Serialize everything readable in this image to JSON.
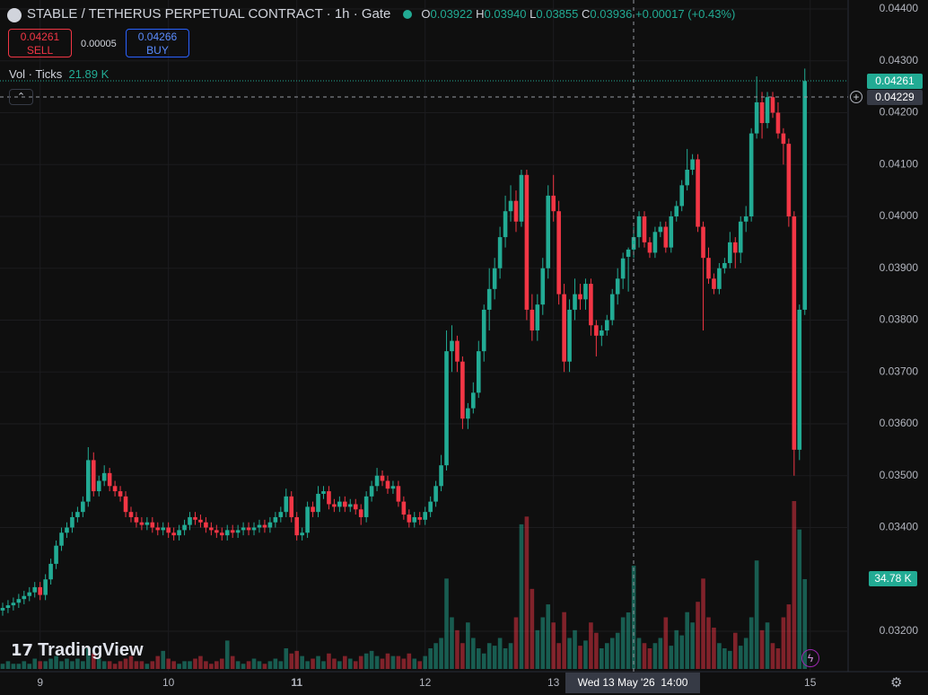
{
  "chart_data": {
    "type": "candlestick",
    "up_color": "#22ab94",
    "down_color": "#f23645",
    "grid": true,
    "xlim": [
      -0.5,
      158.1
    ],
    "ylim": [
      0.031186,
      0.044173
    ],
    "volume_ylim": [
      0,
      259
    ],
    "xticks": [
      {
        "value": 7,
        "label": "9"
      },
      {
        "value": 31,
        "label": "10"
      },
      {
        "value": 55,
        "label": "11"
      },
      {
        "value": 79,
        "label": "12"
      },
      {
        "value": 103,
        "label": "13"
      },
      {
        "value": 151,
        "label": "15"
      }
    ],
    "yticks": [
      {
        "value": 0.032,
        "label": "0.03200"
      },
      {
        "value": 0.034,
        "label": "0.03400"
      },
      {
        "value": 0.035,
        "label": "0.03500"
      },
      {
        "value": 0.036,
        "label": "0.03600"
      },
      {
        "value": 0.037,
        "label": "0.03700"
      },
      {
        "value": 0.038,
        "label": "0.03800"
      },
      {
        "value": 0.039,
        "label": "0.03900"
      },
      {
        "value": 0.04,
        "label": "0.04000"
      },
      {
        "value": 0.041,
        "label": "0.04100"
      },
      {
        "value": 0.042,
        "label": "0.04200"
      },
      {
        "value": 0.043,
        "label": "0.04300"
      },
      {
        "value": 0.044,
        "label": "0.04400"
      }
    ],
    "open": [
      0.0324,
      0.03245,
      0.0325,
      0.03255,
      0.03262,
      0.03268,
      0.03275,
      0.03285,
      0.0327,
      0.033,
      0.0333,
      0.03365,
      0.0339,
      0.034,
      0.0342,
      0.0343,
      0.0345,
      0.0353,
      0.0347,
      0.0349,
      0.03505,
      0.0348,
      0.0347,
      0.0346,
      0.0343,
      0.0342,
      0.0341,
      0.03405,
      0.0341,
      0.034,
      0.03395,
      0.034,
      0.0339,
      0.03385,
      0.03395,
      0.03405,
      0.0342,
      0.03415,
      0.0341,
      0.034,
      0.03395,
      0.0339,
      0.03385,
      0.03395,
      0.0339,
      0.03395,
      0.034,
      0.03395,
      0.034,
      0.03405,
      0.034,
      0.0341,
      0.0342,
      0.0343,
      0.0346,
      0.0342,
      0.03385,
      0.0339,
      0.0344,
      0.0343,
      0.03465,
      0.0347,
      0.03445,
      0.0344,
      0.0345,
      0.0344,
      0.03445,
      0.03435,
      0.0342,
      0.0346,
      0.0348,
      0.035,
      0.0349,
      0.03475,
      0.0348,
      0.0345,
      0.03425,
      0.0341,
      0.0342,
      0.03415,
      0.0343,
      0.0345,
      0.0348,
      0.0352,
      0.0374,
      0.0376,
      0.0372,
      0.0361,
      0.0363,
      0.0366,
      0.0374,
      0.0382,
      0.0386,
      0.039,
      0.0396,
      0.0401,
      0.0403,
      0.0399,
      0.0408,
      0.0382,
      0.0378,
      0.0383,
      0.039,
      0.0404,
      0.0401,
      0.0385,
      0.0372,
      0.0382,
      0.0385,
      0.0384,
      0.0387,
      0.0379,
      0.0377,
      0.0378,
      0.038,
      0.0385,
      0.0388,
      0.03922,
      0.03936,
      0.0396,
      0.04,
      0.0395,
      0.0393,
      0.0397,
      0.0398,
      0.0394,
      0.04,
      0.0402,
      0.0406,
      0.0409,
      0.0411,
      0.0398,
      0.0392,
      0.0388,
      0.0386,
      0.039,
      0.0391,
      0.0395,
      0.0393,
      0.0399,
      0.04,
      0.0416,
      0.0422,
      0.0418,
      0.0423,
      0.042,
      0.0416,
      0.0414,
      0.04,
      0.0355,
      0.0382
    ],
    "high": [
      0.03255,
      0.0326,
      0.03265,
      0.03272,
      0.03278,
      0.03285,
      0.03295,
      0.03295,
      0.0331,
      0.0334,
      0.03375,
      0.034,
      0.0341,
      0.0343,
      0.0344,
      0.0346,
      0.03555,
      0.03545,
      0.035,
      0.0352,
      0.03515,
      0.0349,
      0.0348,
      0.0347,
      0.0344,
      0.0343,
      0.0342,
      0.0342,
      0.0342,
      0.0341,
      0.0341,
      0.0341,
      0.034,
      0.03405,
      0.03415,
      0.0343,
      0.0343,
      0.03425,
      0.0342,
      0.0341,
      0.03405,
      0.034,
      0.03405,
      0.03405,
      0.03405,
      0.0341,
      0.0341,
      0.0341,
      0.03415,
      0.03415,
      0.0342,
      0.0343,
      0.0344,
      0.03475,
      0.0347,
      0.0343,
      0.034,
      0.0345,
      0.0345,
      0.0348,
      0.0348,
      0.0348,
      0.03455,
      0.0346,
      0.0346,
      0.03455,
      0.03455,
      0.03445,
      0.0347,
      0.0349,
      0.03515,
      0.0351,
      0.035,
      0.0349,
      0.0349,
      0.0346,
      0.03435,
      0.0343,
      0.0343,
      0.0344,
      0.0346,
      0.0349,
      0.0354,
      0.0378,
      0.0379,
      0.0377,
      0.0373,
      0.0364,
      0.0368,
      0.0376,
      0.0383,
      0.039,
      0.0392,
      0.0398,
      0.0404,
      0.0406,
      0.0405,
      0.0409,
      0.0409,
      0.0385,
      0.0385,
      0.0392,
      0.0406,
      0.0408,
      0.0403,
      0.0387,
      0.0384,
      0.0388,
      0.0387,
      0.0388,
      0.0388,
      0.038,
      0.0379,
      0.0381,
      0.0386,
      0.039,
      0.0393,
      0.0394,
      0.0398,
      0.0401,
      0.0401,
      0.0396,
      0.0398,
      0.0399,
      0.0399,
      0.0401,
      0.0403,
      0.0407,
      0.0413,
      0.0412,
      0.0412,
      0.0399,
      0.0394,
      0.0389,
      0.0391,
      0.0392,
      0.0397,
      0.0396,
      0.04,
      0.0402,
      0.0417,
      0.0427,
      0.0424,
      0.0424,
      0.0424,
      0.0422,
      0.0417,
      0.0415,
      0.0401,
      0.0383,
      0.04285
    ],
    "low": [
      0.0323,
      0.03235,
      0.0324,
      0.03245,
      0.03252,
      0.03258,
      0.03265,
      0.0326,
      0.0326,
      0.0329,
      0.0332,
      0.03355,
      0.0338,
      0.0339,
      0.0341,
      0.0342,
      0.0344,
      0.0346,
      0.0346,
      0.0348,
      0.0347,
      0.0346,
      0.0345,
      0.0342,
      0.0341,
      0.034,
      0.03395,
      0.03395,
      0.0339,
      0.03385,
      0.03385,
      0.0338,
      0.03375,
      0.03375,
      0.03385,
      0.03395,
      0.03405,
      0.034,
      0.0339,
      0.03385,
      0.0338,
      0.03375,
      0.03375,
      0.0338,
      0.0338,
      0.03385,
      0.03385,
      0.03385,
      0.0339,
      0.0339,
      0.0339,
      0.034,
      0.0341,
      0.0342,
      0.0341,
      0.03375,
      0.03375,
      0.0338,
      0.0342,
      0.0342,
      0.03455,
      0.03435,
      0.0343,
      0.0343,
      0.0343,
      0.0343,
      0.03425,
      0.03405,
      0.0341,
      0.0345,
      0.0347,
      0.0348,
      0.03465,
      0.03465,
      0.0344,
      0.03415,
      0.034,
      0.034,
      0.03405,
      0.03405,
      0.0342,
      0.0344,
      0.0347,
      0.0351,
      0.037,
      0.037,
      0.0359,
      0.0359,
      0.0362,
      0.0365,
      0.0372,
      0.0378,
      0.0384,
      0.0388,
      0.0394,
      0.0399,
      0.0397,
      0.0398,
      0.038,
      0.0376,
      0.0376,
      0.0381,
      0.0388,
      0.0399,
      0.0383,
      0.037,
      0.037,
      0.038,
      0.0382,
      0.0382,
      0.0377,
      0.0373,
      0.0375,
      0.0377,
      0.0379,
      0.0383,
      0.0386,
      0.03855,
      0.0392,
      0.0394,
      0.0394,
      0.0392,
      0.0392,
      0.0396,
      0.0393,
      0.0393,
      0.0399,
      0.0401,
      0.0405,
      0.0408,
      0.0397,
      0.0378,
      0.0387,
      0.0385,
      0.0385,
      0.0389,
      0.039,
      0.039,
      0.0391,
      0.0397,
      0.0399,
      0.0415,
      0.0415,
      0.0417,
      0.0419,
      0.0415,
      0.041,
      0.0398,
      0.035,
      0.0353,
      0.0381
    ],
    "close": [
      0.03245,
      0.0325,
      0.03255,
      0.03262,
      0.03268,
      0.03275,
      0.03285,
      0.0327,
      0.033,
      0.0333,
      0.03365,
      0.0339,
      0.034,
      0.0342,
      0.0343,
      0.0345,
      0.0353,
      0.0347,
      0.0349,
      0.03505,
      0.0348,
      0.0347,
      0.0346,
      0.0343,
      0.0342,
      0.0341,
      0.03405,
      0.0341,
      0.034,
      0.03395,
      0.034,
      0.0339,
      0.03385,
      0.03395,
      0.03405,
      0.0342,
      0.03415,
      0.0341,
      0.034,
      0.03395,
      0.0339,
      0.03385,
      0.03395,
      0.0339,
      0.03395,
      0.034,
      0.03395,
      0.034,
      0.03405,
      0.034,
      0.0341,
      0.0342,
      0.0343,
      0.0346,
      0.0342,
      0.03385,
      0.0339,
      0.0344,
      0.0343,
      0.03465,
      0.0347,
      0.03445,
      0.0344,
      0.0345,
      0.0344,
      0.03445,
      0.03435,
      0.0342,
      0.0346,
      0.0348,
      0.035,
      0.0349,
      0.03475,
      0.0348,
      0.0345,
      0.03425,
      0.0341,
      0.0342,
      0.03415,
      0.0343,
      0.0345,
      0.0348,
      0.0352,
      0.0374,
      0.0376,
      0.0372,
      0.0361,
      0.0363,
      0.0366,
      0.0374,
      0.0382,
      0.0386,
      0.039,
      0.0396,
      0.0401,
      0.0403,
      0.0399,
      0.0408,
      0.0382,
      0.0378,
      0.0383,
      0.039,
      0.0404,
      0.0401,
      0.0385,
      0.0372,
      0.0382,
      0.0385,
      0.0384,
      0.0387,
      0.0379,
      0.0377,
      0.0378,
      0.038,
      0.0385,
      0.0388,
      0.03919,
      0.03936,
      0.0396,
      0.04,
      0.0395,
      0.0393,
      0.0397,
      0.0398,
      0.0394,
      0.04,
      0.0402,
      0.0406,
      0.0409,
      0.0411,
      0.0398,
      0.0392,
      0.0388,
      0.0386,
      0.039,
      0.0391,
      0.0395,
      0.0393,
      0.0399,
      0.04,
      0.0416,
      0.0422,
      0.0418,
      0.0423,
      0.042,
      0.0416,
      0.0414,
      0.04,
      0.0355,
      0.0382,
      0.04261
    ],
    "volume": [
      2,
      3,
      2,
      2,
      3,
      2,
      4,
      3,
      3,
      4,
      5,
      3,
      4,
      3,
      4,
      3,
      8,
      6,
      4,
      3,
      3,
      2,
      3,
      4,
      5,
      3,
      3,
      2,
      3,
      5,
      7,
      4,
      3,
      2,
      3,
      3,
      4,
      5,
      3,
      2,
      3,
      4,
      11,
      5,
      3,
      2,
      3,
      4,
      3,
      2,
      3,
      4,
      3,
      8,
      6,
      7,
      5,
      3,
      4,
      5,
      3,
      6,
      4,
      3,
      5,
      4,
      3,
      5,
      6,
      7,
      5,
      4,
      6,
      5,
      5,
      4,
      6,
      4,
      3,
      5,
      8,
      10,
      12,
      35,
      20,
      15,
      10,
      18,
      12,
      8,
      6,
      10,
      9,
      12,
      8,
      10,
      20,
      56,
      59,
      31,
      15,
      20,
      25,
      18,
      10,
      22,
      12,
      15,
      9,
      11,
      18,
      14,
      8,
      10,
      12,
      14,
      20,
      21.89,
      40,
      12,
      10,
      8,
      10,
      12,
      20,
      9,
      15,
      13,
      22,
      18,
      26,
      35,
      20,
      16,
      10,
      8,
      7,
      14,
      9,
      12,
      20,
      42,
      15,
      18,
      10,
      8,
      20,
      25,
      65,
      54,
      34.78
    ]
  },
  "header": {
    "symbol": "STABLE / TETHERUS PERPETUAL CONTRACT · 1h · Gate",
    "o_key": "O",
    "o": "0.03922",
    "h_key": "H",
    "h": "0.03940",
    "l_key": "L",
    "l": "0.03855",
    "c_key": "C",
    "c": "0.03936",
    "change": "+0.00017 (+0.43%)"
  },
  "trading": {
    "sell_price": "0.04261",
    "sell": "SELL",
    "spread": "0.00005",
    "buy_price": "0.04266",
    "buy": "BUY"
  },
  "volume_legend": {
    "label": "Vol · Ticks",
    "value": "21.89 K"
  },
  "overlay": {
    "last_price": "0.04261",
    "crosshair_price": "0.04229",
    "volume_tag": "34.78 K",
    "crosshair_date": "Wed 13 May '26",
    "crosshair_time": "14:00",
    "watermark": "TradingView"
  }
}
